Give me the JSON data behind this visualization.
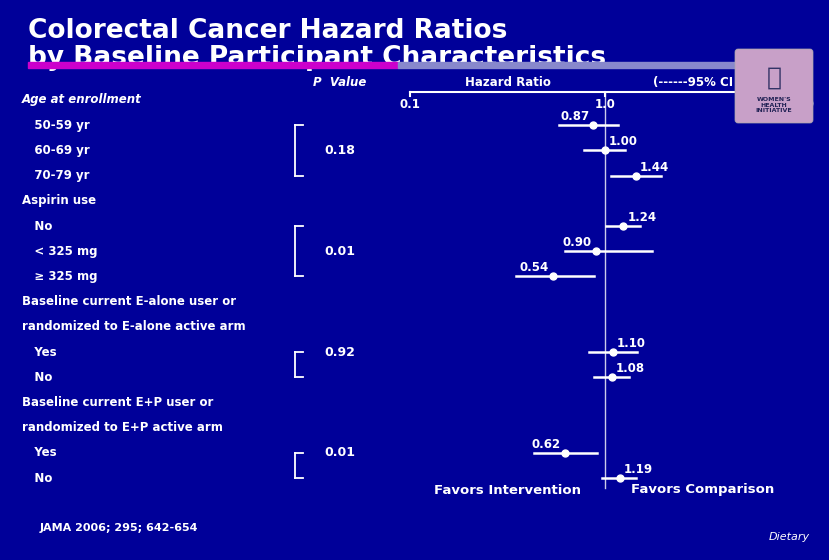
{
  "title_line1": "Colorectal Cancer Hazard Ratios",
  "title_line2": "by Baseline Participant Characteristics",
  "bg_color": "#000099",
  "text_color": "#ffffff",
  "magenta_bar_color": "#cc00cc",
  "cyan_bar_color": "#8888cc",
  "header_hazard": "Hazard Ratio",
  "header_ci": "(------95% CI ------)",
  "favors_left": "Favors Intervention",
  "favors_right": "Favors Comparison",
  "citation": "JAMA 2006; 295; 642-654",
  "watermark": "Dietary",
  "p_value_label": "P  Value",
  "rows": [
    {
      "label": "Age at enrollment",
      "indent": 0,
      "italic": true,
      "hr": null,
      "ci_lo": null,
      "ci_hi": null
    },
    {
      "label": "   50-59 yr",
      "indent": 0,
      "italic": false,
      "hr": 0.87,
      "ci_lo": 0.58,
      "ci_hi": 1.17
    },
    {
      "label": "   60-69 yr",
      "indent": 0,
      "italic": false,
      "hr": 1.0,
      "ci_lo": 0.78,
      "ci_hi": 1.27
    },
    {
      "label": "   70-79 yr",
      "indent": 0,
      "italic": false,
      "hr": 1.44,
      "ci_lo": 1.07,
      "ci_hi": 1.93
    },
    {
      "label": "Aspirin use",
      "indent": 0,
      "italic": false,
      "hr": null,
      "ci_lo": null,
      "ci_hi": null
    },
    {
      "label": "   No",
      "indent": 0,
      "italic": false,
      "hr": 1.24,
      "ci_lo": 1.01,
      "ci_hi": 1.52
    },
    {
      "label": "   < 325 mg",
      "indent": 0,
      "italic": false,
      "hr": 0.9,
      "ci_lo": 0.62,
      "ci_hi": 1.75
    },
    {
      "label": "   ≥ 325 mg",
      "indent": 0,
      "italic": false,
      "hr": 0.54,
      "ci_lo": 0.35,
      "ci_hi": 0.88
    },
    {
      "label": "Baseline current E-alone user or",
      "indent": 0,
      "italic": false,
      "hr": null,
      "ci_lo": null,
      "ci_hi": null
    },
    {
      "label": "randomized to E-alone active arm",
      "indent": 0,
      "italic": false,
      "hr": null,
      "ci_lo": null,
      "ci_hi": null
    },
    {
      "label": "   Yes",
      "indent": 0,
      "italic": false,
      "hr": 1.1,
      "ci_lo": 0.83,
      "ci_hi": 1.46
    },
    {
      "label": "   No",
      "indent": 0,
      "italic": false,
      "hr": 1.08,
      "ci_lo": 0.88,
      "ci_hi": 1.32
    },
    {
      "label": "Baseline current E+P user or",
      "indent": 0,
      "italic": false,
      "hr": null,
      "ci_lo": null,
      "ci_hi": null
    },
    {
      "label": "randomized to E+P active arm",
      "indent": 0,
      "italic": false,
      "hr": null,
      "ci_lo": null,
      "ci_hi": null
    },
    {
      "label": "   Yes",
      "indent": 0,
      "italic": false,
      "hr": 0.62,
      "ci_lo": 0.43,
      "ci_hi": 0.91
    },
    {
      "label": "   No",
      "indent": 0,
      "italic": false,
      "hr": 1.19,
      "ci_lo": 0.97,
      "ci_hi": 1.44
    }
  ],
  "bracket_groups": [
    {
      "rows": [
        1,
        3
      ],
      "p_value": "0.18",
      "p_row_mid": 2
    },
    {
      "rows": [
        5,
        7
      ],
      "p_value": "0.01",
      "p_row_mid": 6
    },
    {
      "rows": [
        10,
        11
      ],
      "p_value": "0.92",
      "p_row_mid": 10
    },
    {
      "rows": [
        14,
        15
      ],
      "p_value": "0.01",
      "p_row_mid": 14
    }
  ]
}
